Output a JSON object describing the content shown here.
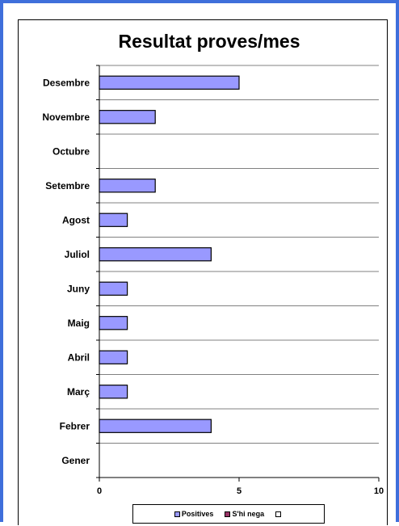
{
  "chart_data": {
    "type": "bar",
    "orientation": "horizontal",
    "title": "Resultat proves/mes",
    "categories": [
      "Gener",
      "Febrer",
      "Març",
      "Abril",
      "Maig",
      "Juny",
      "Juliol",
      "Agost",
      "Setembre",
      "Octubre",
      "Novembre",
      "Desembre"
    ],
    "series": [
      {
        "name": "Positives",
        "values": [
          0,
          4,
          1,
          1,
          1,
          1,
          4,
          1,
          2,
          0,
          2,
          5
        ],
        "color": "#9999ff"
      },
      {
        "name": "S'hi nega",
        "values": [
          0,
          0,
          0,
          0,
          0,
          0,
          0,
          0,
          0,
          0,
          0,
          0
        ],
        "color": "#993366"
      },
      {
        "name": "",
        "values": [
          0,
          0,
          0,
          0,
          0,
          0,
          0,
          0,
          0,
          0,
          0,
          0
        ],
        "color": "#ffffff"
      }
    ],
    "x_ticks": [
      "0",
      "5",
      "10"
    ],
    "xlim": [
      0,
      10
    ],
    "grid": true,
    "legend_position": "bottom"
  },
  "colors": {
    "frame": "#3f6fdb",
    "bar_fill": "#9999ff",
    "bar_stroke": "#000000"
  }
}
